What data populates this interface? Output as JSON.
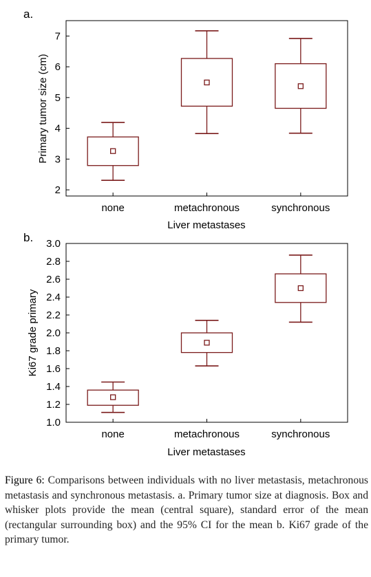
{
  "chart_data": [
    {
      "panel_label": "a.",
      "type": "box",
      "xlabel": "Liver metastases",
      "ylabel": "Primary tumor size (cm)",
      "categories": [
        "none",
        "metachronous",
        "synchronous"
      ],
      "ylim": [
        1.8,
        7.5
      ],
      "yticks": [
        2,
        3,
        4,
        5,
        6,
        7
      ],
      "ytick_labels": [
        "2",
        "3",
        "4",
        "5",
        "6",
        "7"
      ],
      "series": [
        {
          "mean": 3.26,
          "se_low": 2.79,
          "se_high": 3.72,
          "ci_low": 2.31,
          "ci_high": 4.19
        },
        {
          "mean": 5.49,
          "se_low": 4.72,
          "se_high": 6.27,
          "ci_low": 3.83,
          "ci_high": 7.17
        },
        {
          "mean": 5.37,
          "se_low": 4.65,
          "se_high": 6.1,
          "ci_low": 3.84,
          "ci_high": 6.92
        }
      ],
      "grid": false,
      "color": "#7a1a1a"
    },
    {
      "panel_label": "b.",
      "type": "box",
      "xlabel": "Liver metastases",
      "ylabel": "Ki67 grade primary",
      "categories": [
        "none",
        "metachronous",
        "synchronous"
      ],
      "ylim": [
        1.0,
        3.0
      ],
      "yticks": [
        1.0,
        1.2,
        1.4,
        1.6,
        1.8,
        2.0,
        2.2,
        2.4,
        2.6,
        2.8,
        3.0
      ],
      "ytick_labels": [
        "1.0",
        "1.2",
        "1.4",
        "1.6",
        "1.8",
        "2.0",
        "2.2",
        "2.4",
        "2.6",
        "2.8",
        "3.0"
      ],
      "series": [
        {
          "mean": 1.28,
          "se_low": 1.19,
          "se_high": 1.36,
          "ci_low": 1.11,
          "ci_high": 1.45
        },
        {
          "mean": 1.89,
          "se_low": 1.78,
          "se_high": 2.0,
          "ci_low": 1.63,
          "ci_high": 2.14
        },
        {
          "mean": 2.5,
          "se_low": 2.34,
          "se_high": 2.66,
          "ci_low": 2.12,
          "ci_high": 2.87
        }
      ],
      "grid": false,
      "color": "#7a1a1a"
    }
  ],
  "caption": {
    "label": "Figure 6:",
    "text": " Comparisons between individuals with no liver metastasis, metachronous metastasis and synchronous metastasis. a. Primary tumor size at diagnosis. Box and whisker plots provide the mean (central square), standard error of the mean (rectangular surrounding box) and the 95% CI for the mean b. Ki67 grade of the primary tumor."
  }
}
